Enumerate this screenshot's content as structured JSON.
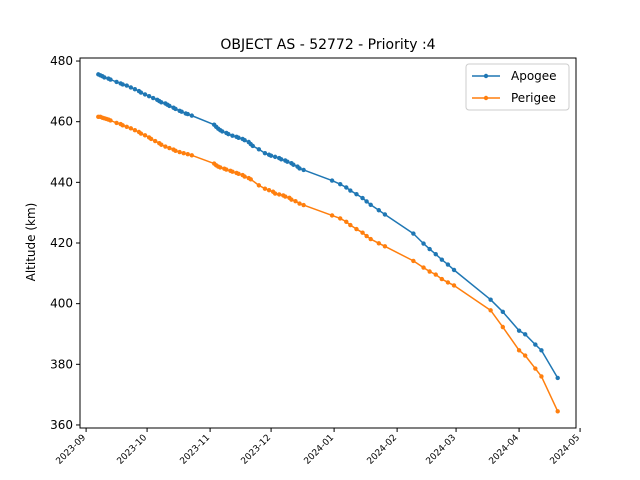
{
  "chart_data": {
    "type": "line",
    "title": "OBJECT AS - 52772 - Priority :4",
    "xlabel": "",
    "ylabel": "Altitude (km)",
    "x_axis_kind": "date",
    "xlim": [
      "2023-08-29",
      "2024-04-29"
    ],
    "ylim": [
      359,
      481
    ],
    "x_ticks": [
      "2023-09",
      "2023-10",
      "2023-11",
      "2023-12",
      "2024-01",
      "2024-02",
      "2024-03",
      "2024-04",
      "2024-05"
    ],
    "y_ticks": [
      360,
      380,
      400,
      420,
      440,
      460,
      480
    ],
    "grid": false,
    "legend": "top-right",
    "markers": "dot",
    "series": [
      {
        "name": "Apogee",
        "color": "#1f77b4",
        "points": [
          [
            "2023-09-07",
            475.6
          ],
          [
            "2023-09-08",
            475.3
          ],
          [
            "2023-09-09",
            475.0
          ],
          [
            "2023-09-10",
            474.6
          ],
          [
            "2023-09-12",
            474.2
          ],
          [
            "2023-09-13",
            473.9
          ],
          [
            "2023-09-16",
            473.1
          ],
          [
            "2023-09-18",
            472.6
          ],
          [
            "2023-09-19",
            472.3
          ],
          [
            "2023-09-21",
            471.9
          ],
          [
            "2023-09-23",
            471.3
          ],
          [
            "2023-09-25",
            470.7
          ],
          [
            "2023-09-27",
            470.1
          ],
          [
            "2023-09-28",
            469.6
          ],
          [
            "2023-09-30",
            469.0
          ],
          [
            "2023-10-02",
            468.4
          ],
          [
            "2023-10-04",
            467.8
          ],
          [
            "2023-10-06",
            467.2
          ],
          [
            "2023-10-07",
            466.8
          ],
          [
            "2023-10-08",
            466.4
          ],
          [
            "2023-10-10",
            466.0
          ],
          [
            "2023-10-11",
            465.6
          ],
          [
            "2023-10-12",
            465.2
          ],
          [
            "2023-10-14",
            464.6
          ],
          [
            "2023-10-15",
            464.2
          ],
          [
            "2023-10-17",
            463.6
          ],
          [
            "2023-10-18",
            463.3
          ],
          [
            "2023-10-20",
            462.7
          ],
          [
            "2023-10-21",
            462.5
          ],
          [
            "2023-10-23",
            462.0
          ],
          [
            "2023-11-03",
            459.0
          ],
          [
            "2023-11-04",
            458.3
          ],
          [
            "2023-11-05",
            457.7
          ],
          [
            "2023-11-06",
            457.2
          ],
          [
            "2023-11-07",
            456.8
          ],
          [
            "2023-11-09",
            456.3
          ],
          [
            "2023-11-10",
            455.9
          ],
          [
            "2023-11-12",
            455.4
          ],
          [
            "2023-11-14",
            455.0
          ],
          [
            "2023-11-15",
            454.7
          ],
          [
            "2023-11-17",
            454.3
          ],
          [
            "2023-11-18",
            453.9
          ],
          [
            "2023-11-20",
            453.3
          ],
          [
            "2023-11-21",
            452.6
          ],
          [
            "2023-11-22",
            452.0
          ],
          [
            "2023-11-25",
            450.9
          ],
          [
            "2023-11-28",
            449.6
          ],
          [
            "2023-11-30",
            449.1
          ],
          [
            "2023-12-01",
            448.8
          ],
          [
            "2023-12-03",
            448.4
          ],
          [
            "2023-12-05",
            448.0
          ],
          [
            "2023-12-06",
            447.6
          ],
          [
            "2023-12-08",
            447.2
          ],
          [
            "2023-12-09",
            446.8
          ],
          [
            "2023-12-11",
            446.3
          ],
          [
            "2023-12-12",
            445.8
          ],
          [
            "2023-12-14",
            445.2
          ],
          [
            "2023-12-15",
            444.6
          ],
          [
            "2023-12-17",
            444.1
          ],
          [
            "2023-12-31",
            440.6
          ],
          [
            "2024-01-04",
            439.4
          ],
          [
            "2024-01-07",
            438.3
          ],
          [
            "2024-01-09",
            437.3
          ],
          [
            "2024-01-12",
            436.1
          ],
          [
            "2024-01-15",
            434.8
          ],
          [
            "2024-01-17",
            433.7
          ],
          [
            "2024-01-19",
            432.6
          ],
          [
            "2024-01-23",
            430.8
          ],
          [
            "2024-01-26",
            429.4
          ],
          [
            "2024-02-09",
            423.1
          ],
          [
            "2024-02-14",
            419.8
          ],
          [
            "2024-02-17",
            418.0
          ],
          [
            "2024-02-20",
            416.3
          ],
          [
            "2024-02-23",
            414.5
          ],
          [
            "2024-02-26",
            412.9
          ],
          [
            "2024-02-29",
            411.1
          ],
          [
            "2024-03-18",
            401.3
          ],
          [
            "2024-03-24",
            397.3
          ],
          [
            "2024-04-01",
            391.1
          ],
          [
            "2024-04-04",
            389.9
          ],
          [
            "2024-04-09",
            386.5
          ],
          [
            "2024-04-12",
            384.6
          ],
          [
            "2024-04-20",
            375.5
          ]
        ]
      },
      {
        "name": "Perigee",
        "color": "#ff7f0e",
        "points": [
          [
            "2023-09-07",
            461.6
          ],
          [
            "2023-09-08",
            461.6
          ],
          [
            "2023-09-09",
            461.3
          ],
          [
            "2023-09-10",
            461.1
          ],
          [
            "2023-09-11",
            460.9
          ],
          [
            "2023-09-12",
            460.7
          ],
          [
            "2023-09-13",
            460.4
          ],
          [
            "2023-09-16",
            459.6
          ],
          [
            "2023-09-18",
            459.2
          ],
          [
            "2023-09-19",
            458.8
          ],
          [
            "2023-09-21",
            458.3
          ],
          [
            "2023-09-23",
            457.8
          ],
          [
            "2023-09-25",
            457.2
          ],
          [
            "2023-09-27",
            456.6
          ],
          [
            "2023-09-28",
            456.1
          ],
          [
            "2023-09-30",
            455.5
          ],
          [
            "2023-10-02",
            454.8
          ],
          [
            "2023-10-03",
            454.3
          ],
          [
            "2023-10-05",
            453.6
          ],
          [
            "2023-10-07",
            452.9
          ],
          [
            "2023-10-08",
            452.4
          ],
          [
            "2023-10-10",
            451.8
          ],
          [
            "2023-10-12",
            451.3
          ],
          [
            "2023-10-14",
            450.8
          ],
          [
            "2023-10-15",
            450.4
          ],
          [
            "2023-10-17",
            450.0
          ],
          [
            "2023-10-19",
            449.6
          ],
          [
            "2023-10-21",
            449.3
          ],
          [
            "2023-10-23",
            448.9
          ],
          [
            "2023-11-03",
            446.2
          ],
          [
            "2023-11-04",
            445.6
          ],
          [
            "2023-11-05",
            445.2
          ],
          [
            "2023-11-06",
            444.9
          ],
          [
            "2023-11-08",
            444.5
          ],
          [
            "2023-11-09",
            444.2
          ],
          [
            "2023-11-11",
            443.8
          ],
          [
            "2023-11-12",
            443.5
          ],
          [
            "2023-11-14",
            443.1
          ],
          [
            "2023-11-15",
            442.8
          ],
          [
            "2023-11-17",
            442.4
          ],
          [
            "2023-11-18",
            441.9
          ],
          [
            "2023-11-20",
            441.4
          ],
          [
            "2023-11-21",
            441.0
          ],
          [
            "2023-11-25",
            439.0
          ],
          [
            "2023-11-28",
            437.9
          ],
          [
            "2023-11-30",
            437.4
          ],
          [
            "2023-12-02",
            436.9
          ],
          [
            "2023-12-03",
            436.3
          ],
          [
            "2023-12-05",
            436.0
          ],
          [
            "2023-12-07",
            435.7
          ],
          [
            "2023-12-08",
            435.3
          ],
          [
            "2023-12-10",
            434.9
          ],
          [
            "2023-12-11",
            434.3
          ],
          [
            "2023-12-13",
            433.8
          ],
          [
            "2023-12-15",
            433.0
          ],
          [
            "2023-12-17",
            432.5
          ],
          [
            "2023-12-31",
            429.1
          ],
          [
            "2024-01-04",
            428.1
          ],
          [
            "2024-01-07",
            427.0
          ],
          [
            "2024-01-09",
            425.9
          ],
          [
            "2024-01-12",
            424.6
          ],
          [
            "2024-01-15",
            423.4
          ],
          [
            "2024-01-17",
            422.3
          ],
          [
            "2024-01-19",
            421.3
          ],
          [
            "2024-01-23",
            419.9
          ],
          [
            "2024-01-26",
            418.9
          ],
          [
            "2024-02-09",
            414.1
          ],
          [
            "2024-02-14",
            411.9
          ],
          [
            "2024-02-17",
            410.6
          ],
          [
            "2024-02-20",
            409.6
          ],
          [
            "2024-02-23",
            408.1
          ],
          [
            "2024-02-26",
            407.0
          ],
          [
            "2024-02-29",
            406.0
          ],
          [
            "2024-03-18",
            397.8
          ],
          [
            "2024-03-24",
            392.3
          ],
          [
            "2024-04-01",
            384.6
          ],
          [
            "2024-04-04",
            382.9
          ],
          [
            "2024-04-09",
            378.6
          ],
          [
            "2024-04-12",
            376.0
          ],
          [
            "2024-04-20",
            364.5
          ]
        ]
      }
    ]
  }
}
